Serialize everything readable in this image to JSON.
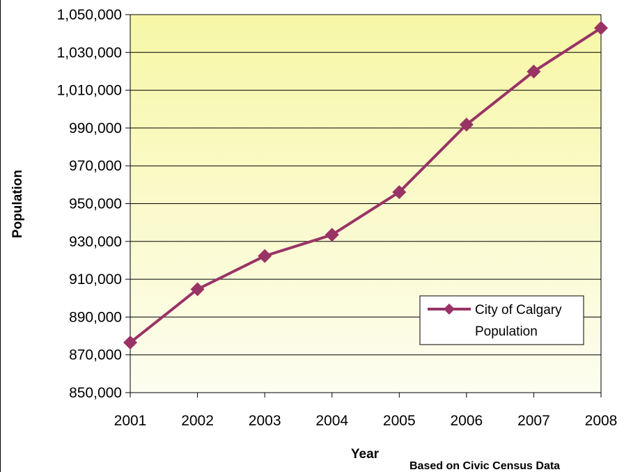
{
  "chart_data": {
    "type": "line",
    "title": "",
    "xlabel": "Year",
    "ylabel": "Population",
    "x": [
      "2001",
      "2002",
      "2003",
      "2004",
      "2005",
      "2006",
      "2007",
      "2008"
    ],
    "series": [
      {
        "name": "City of Calgary Population",
        "values": [
          876500,
          904700,
          922300,
          933500,
          956100,
          991800,
          1019900,
          1042900
        ],
        "color": "#993366",
        "marker": "diamond"
      }
    ],
    "ylim": [
      850000,
      1050000
    ],
    "yticks": [
      850000,
      870000,
      890000,
      910000,
      930000,
      950000,
      970000,
      990000,
      1010000,
      1030000,
      1050000
    ],
    "ytick_labels": [
      "850,000",
      "870,000",
      "890,000",
      "910,000",
      "930,000",
      "950,000",
      "970,000",
      "990,000",
      "1,010,000",
      "1,030,000",
      "1,050,000"
    ],
    "grid": true,
    "legend": {
      "position": "bottom-right",
      "lines": [
        "City of Calgary",
        "Population"
      ]
    },
    "plot_background": {
      "top_color": "#f7f7a6",
      "bottom_color": "#fdfdf0"
    },
    "note": "Based on Civic Census Data"
  }
}
